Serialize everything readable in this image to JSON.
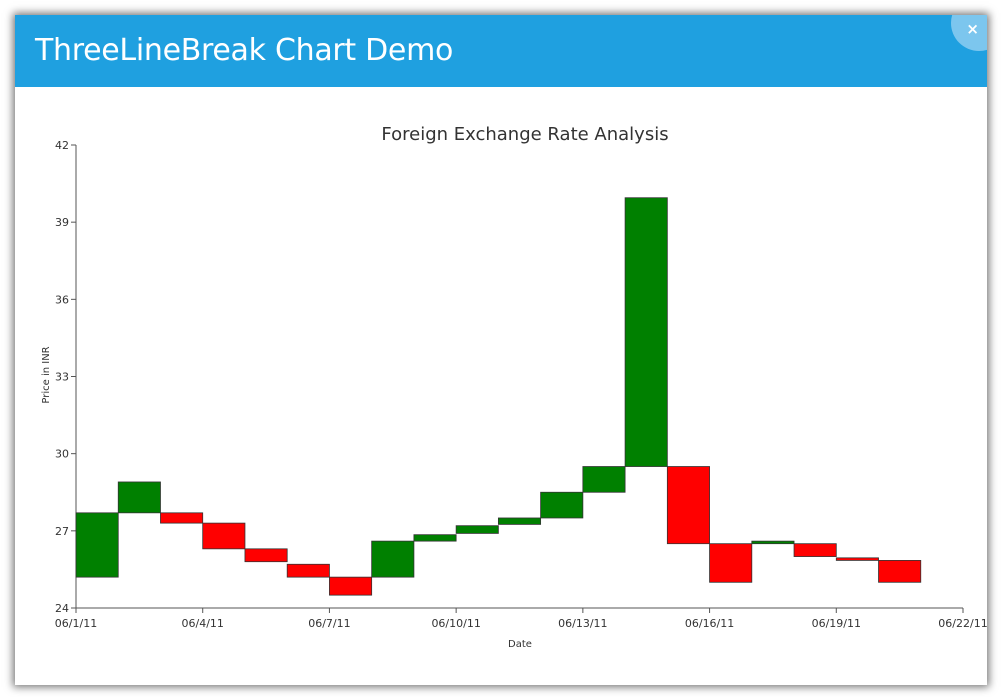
{
  "window": {
    "title": "ThreeLineBreak Chart Demo",
    "close_label": "×"
  },
  "colors": {
    "titlebar": "#1fa0e0",
    "bullish": "#008000",
    "bearish": "#ff0000"
  },
  "chart_data": {
    "type": "threelinebreak",
    "title": "Foreign Exchange Rate Analysis",
    "xlabel": "Date",
    "ylabel": "Price in INR",
    "ylim": [
      24,
      42
    ],
    "yticks": [
      24,
      27,
      30,
      33,
      36,
      39,
      42
    ],
    "xticks": [
      "06/1/11",
      "06/4/11",
      "06/7/11",
      "06/10/11",
      "06/13/11",
      "06/16/11",
      "06/19/11",
      "06/22/11"
    ],
    "xlim": [
      "06/1/11",
      "06/22/11"
    ],
    "grid": false,
    "boxes": [
      {
        "x": "06/1/11",
        "open": 25.2,
        "close": 27.7
      },
      {
        "x": "06/2/11",
        "open": 27.7,
        "close": 28.9
      },
      {
        "x": "06/3/11",
        "open": 27.7,
        "close": 27.3
      },
      {
        "x": "06/4/11",
        "open": 27.3,
        "close": 26.3
      },
      {
        "x": "06/5/11",
        "open": 26.3,
        "close": 25.8
      },
      {
        "x": "06/6/11",
        "open": 25.7,
        "close": 25.2
      },
      {
        "x": "06/7/11",
        "open": 25.2,
        "close": 24.5
      },
      {
        "x": "06/8/11",
        "open": 25.2,
        "close": 26.6
      },
      {
        "x": "06/9/11",
        "open": 26.6,
        "close": 26.85
      },
      {
        "x": "06/10/11",
        "open": 26.9,
        "close": 27.2
      },
      {
        "x": "06/11/11",
        "open": 27.25,
        "close": 27.5
      },
      {
        "x": "06/12/11",
        "open": 27.5,
        "close": 28.5
      },
      {
        "x": "06/13/11",
        "open": 28.5,
        "close": 29.5
      },
      {
        "x": "06/14/11",
        "open": 29.5,
        "close": 39.95
      },
      {
        "x": "06/15/11",
        "open": 29.5,
        "close": 26.5
      },
      {
        "x": "06/16/11",
        "open": 26.5,
        "close": 25.0
      },
      {
        "x": "06/17/11",
        "open": 26.5,
        "close": 26.6
      },
      {
        "x": "06/18/11",
        "open": 26.5,
        "close": 26.0
      },
      {
        "x": "06/19/11",
        "open": 25.95,
        "close": 25.85
      },
      {
        "x": "06/20/11",
        "open": 25.85,
        "close": 25.0
      }
    ]
  }
}
